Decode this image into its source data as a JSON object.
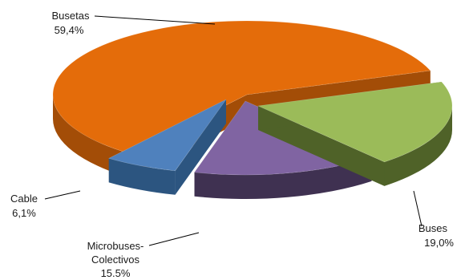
{
  "chart_data": {
    "type": "pie",
    "title": "",
    "slices": [
      {
        "label": "Busetas",
        "value_label": "59,4%",
        "value": 59.4,
        "color": "#e46c0a",
        "side_color": "#a34d07",
        "exploded": false
      },
      {
        "label": "Buses",
        "value_label": "19,0%",
        "value": 19.0,
        "color": "#9bbb59",
        "side_color": "#4f6228",
        "exploded": true
      },
      {
        "label": "Microbuses-\nColectivos",
        "value_label": "15.5%",
        "value": 15.5,
        "color": "#8064a2",
        "side_color": "#3f3151",
        "exploded": false
      },
      {
        "label": "Cable",
        "value_label": "6,1%",
        "value": 6.1,
        "color": "#4f81bd",
        "side_color": "#2c5580",
        "exploded": false
      }
    ]
  }
}
